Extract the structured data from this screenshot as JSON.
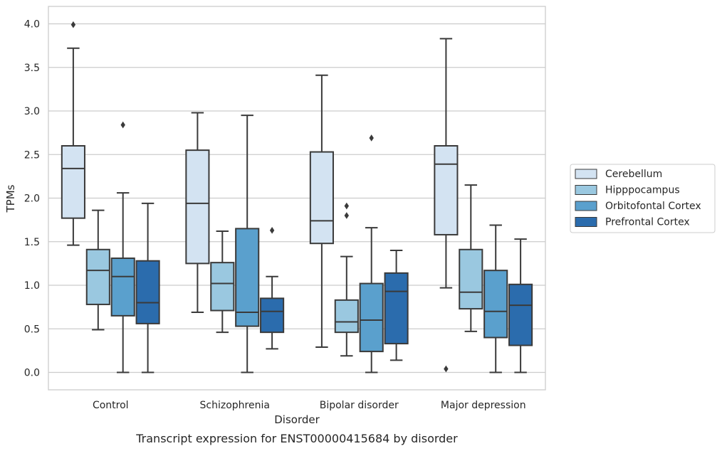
{
  "caption": "Transcript expression for ENST00000415684 by disorder",
  "chart_data": {
    "type": "boxplot",
    "xlabel": "Disorder",
    "ylabel": "TPMs",
    "ylim": [
      -0.2,
      4.2
    ],
    "yticks": [
      0.0,
      0.5,
      1.0,
      1.5,
      2.0,
      2.5,
      3.0,
      3.5,
      4.0
    ],
    "ytick_labels": [
      "0.0",
      "0.5",
      "1.0",
      "1.5",
      "2.0",
      "2.5",
      "3.0",
      "3.5",
      "4.0"
    ],
    "grid": "horizontal",
    "legend_position": "right",
    "categories": [
      "Control",
      "Schizophrenia",
      "Bipolar disorder",
      "Major depression"
    ],
    "series": [
      {
        "name": "Cerebellum",
        "color": "#d3e3f2",
        "boxes": [
          {
            "whisker_low": 1.46,
            "q1": 1.77,
            "median": 2.34,
            "q3": 2.6,
            "whisker_high": 3.72,
            "outliers": [
              3.99
            ]
          },
          {
            "whisker_low": 0.69,
            "q1": 1.25,
            "median": 1.94,
            "q3": 2.55,
            "whisker_high": 2.98,
            "outliers": []
          },
          {
            "whisker_low": 0.29,
            "q1": 1.48,
            "median": 1.74,
            "q3": 2.53,
            "whisker_high": 3.41,
            "outliers": []
          },
          {
            "whisker_low": 0.97,
            "q1": 1.58,
            "median": 2.39,
            "q3": 2.6,
            "whisker_high": 3.83,
            "outliers": [
              0.04
            ]
          }
        ]
      },
      {
        "name": "Hipppocampus",
        "color": "#9ac8e0",
        "boxes": [
          {
            "whisker_low": 0.49,
            "q1": 0.78,
            "median": 1.17,
            "q3": 1.41,
            "whisker_high": 1.86,
            "outliers": []
          },
          {
            "whisker_low": 0.46,
            "q1": 0.71,
            "median": 1.02,
            "q3": 1.26,
            "whisker_high": 1.62,
            "outliers": []
          },
          {
            "whisker_low": 0.19,
            "q1": 0.46,
            "median": 0.58,
            "q3": 0.83,
            "whisker_high": 1.33,
            "outliers": [
              1.91,
              1.8
            ]
          },
          {
            "whisker_low": 0.47,
            "q1": 0.73,
            "median": 0.92,
            "q3": 1.41,
            "whisker_high": 2.15,
            "outliers": []
          }
        ]
      },
      {
        "name": "Orbitofontal Cortex",
        "color": "#5aa0cd",
        "boxes": [
          {
            "whisker_low": 0.0,
            "q1": 0.65,
            "median": 1.1,
            "q3": 1.31,
            "whisker_high": 2.06,
            "outliers": [
              2.84
            ]
          },
          {
            "whisker_low": 0.0,
            "q1": 0.53,
            "median": 0.69,
            "q3": 1.65,
            "whisker_high": 2.95,
            "outliers": []
          },
          {
            "whisker_low": 0.0,
            "q1": 0.24,
            "median": 0.6,
            "q3": 1.02,
            "whisker_high": 1.66,
            "outliers": [
              2.69
            ]
          },
          {
            "whisker_low": 0.0,
            "q1": 0.4,
            "median": 0.7,
            "q3": 1.17,
            "whisker_high": 1.69,
            "outliers": []
          }
        ]
      },
      {
        "name": "Prefrontal Cortex",
        "color": "#2b6cad",
        "boxes": [
          {
            "whisker_low": 0.0,
            "q1": 0.56,
            "median": 0.8,
            "q3": 1.28,
            "whisker_high": 1.94,
            "outliers": []
          },
          {
            "whisker_low": 0.27,
            "q1": 0.46,
            "median": 0.7,
            "q3": 0.85,
            "whisker_high": 1.1,
            "outliers": [
              1.63
            ]
          },
          {
            "whisker_low": 0.14,
            "q1": 0.33,
            "median": 0.93,
            "q3": 1.14,
            "whisker_high": 1.4,
            "outliers": []
          },
          {
            "whisker_low": 0.0,
            "q1": 0.31,
            "median": 0.77,
            "q3": 1.01,
            "whisker_high": 1.53,
            "outliers": []
          }
        ]
      }
    ]
  }
}
